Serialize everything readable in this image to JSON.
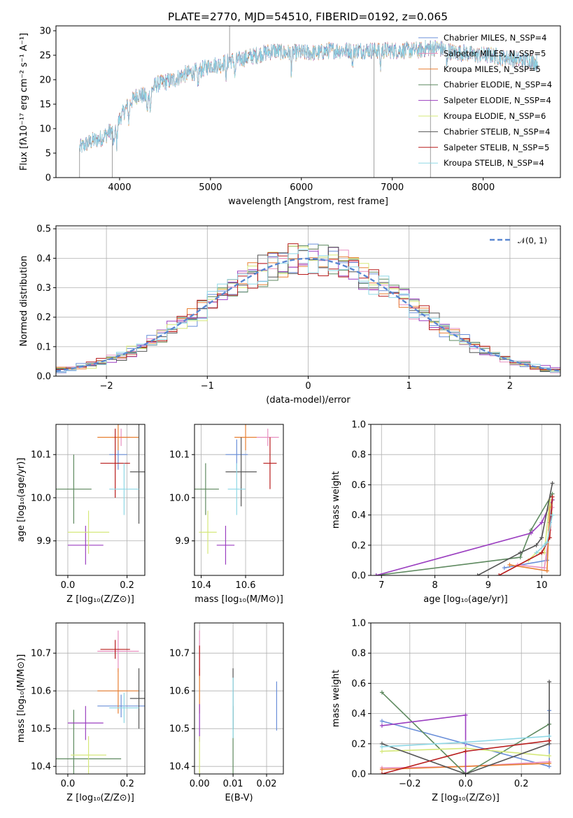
{
  "colors": [
    "#6a8fd9",
    "#e88fc0",
    "#e87f32",
    "#5f8a60",
    "#9b3fc0",
    "#d5e87a",
    "#555555",
    "#b81c1c",
    "#8fd8e6"
  ],
  "chart_data": [
    {
      "id": "spectrum",
      "type": "line",
      "title": "PLATE=2770, MJD=54510, FIBERID=0192, z=0.065",
      "xlabel": "wavelength [Angstrom, rest frame]",
      "ylabel": "Flux [fλ10⁻¹⁷ erg cm⁻² s⁻¹ A⁻¹]",
      "xlim": [
        3300,
        8850
      ],
      "ylim": [
        0,
        31
      ],
      "xticks": [
        "4000",
        "5000",
        "6000",
        "7000",
        "8000"
      ],
      "yticks": [
        "0",
        "5",
        "10",
        "15",
        "20",
        "25",
        "30"
      ],
      "continuum_x": [
        3560,
        3600,
        3700,
        3800,
        3900,
        3950,
        4000,
        4100,
        4200,
        4300,
        4400,
        4500,
        4600,
        4700,
        4800,
        4900,
        5000,
        5100,
        5200,
        5300,
        5400,
        5500,
        5600,
        5700,
        5800,
        5900,
        6000,
        6100,
        6200,
        6300,
        6400,
        6500,
        6600,
        6700,
        6800,
        6900,
        7000,
        7100,
        7200,
        7300,
        7400,
        7500,
        7600,
        7700,
        7800,
        7900,
        8000,
        8100,
        8200,
        8300,
        8400,
        8500,
        8600
      ],
      "continuum_y": [
        6,
        6.5,
        7.5,
        8,
        9.5,
        9.5,
        12,
        15,
        17,
        16.5,
        19,
        19.5,
        20,
        21,
        21.5,
        22,
        23,
        23,
        24,
        24,
        24.5,
        25,
        25.5,
        26,
        25.5,
        25.5,
        25.5,
        25.5,
        25.5,
        26,
        26,
        26,
        26,
        26,
        26,
        26,
        26,
        26,
        26,
        26,
        26.5,
        26.5,
        26,
        25.5,
        25.5,
        25,
        25,
        25,
        24.5,
        24.5,
        24,
        24,
        23.5
      ],
      "series": [
        {
          "name": "Chabrier MILES, N_SSP=4"
        },
        {
          "name": "Salpeter MILES, N_SSP=5"
        },
        {
          "name": "Kroupa MILES, N_SSP=5"
        },
        {
          "name": "Chabrier ELODIE, N_SSP=4"
        },
        {
          "name": "Salpeter ELODIE, N_SSP=4"
        },
        {
          "name": "Kroupa ELODIE, N_SSP=6"
        },
        {
          "name": "Chabrier STELIB, N_SSP=4"
        },
        {
          "name": "Salpeter STELIB, N_SSP=5"
        },
        {
          "name": "Kroupa STELIB, N_SSP=4"
        }
      ],
      "legend_placement": "upper-right",
      "grid": false
    },
    {
      "id": "residuals",
      "type": "histogram",
      "xlabel": "(data-model)/error",
      "ylabel": "Normed distribution",
      "xlim": [
        -2.5,
        2.5
      ],
      "ylim": [
        0,
        0.51
      ],
      "xticks": [
        "−2",
        "−1",
        "0",
        "1",
        "2"
      ],
      "yticks": [
        "0.0",
        "0.1",
        "0.2",
        "0.3",
        "0.4",
        "0.5"
      ],
      "bin_width": 0.1,
      "legend": "𝒩(0, 1)",
      "legend_placement": "upper-right",
      "grid": true
    },
    {
      "id": "age-vs-Z",
      "type": "errorbar",
      "xlabel": "Z [log₁₀(Z/Z⊙)]",
      "ylabel": "age  [log₁₀(age/yr)]",
      "xlim": [
        -0.04,
        0.26
      ],
      "ylim": [
        9.82,
        10.17
      ],
      "xticks": [
        "0.0",
        "0.2"
      ],
      "yticks": [
        "9.9",
        "10.0",
        "10.1"
      ],
      "points": [
        {
          "x": 0.17,
          "xe": 0.03,
          "y": 10.1,
          "ye": 0.035
        },
        {
          "x": 0.18,
          "xe": 0.03,
          "y": 10.14,
          "ye": 0.02
        },
        {
          "x": 0.17,
          "xe": 0.07,
          "y": 10.14,
          "ye": 0.03
        },
        {
          "x": 0.02,
          "xe": 0.06,
          "y": 10.02,
          "ye": 0.08
        },
        {
          "x": 0.06,
          "xe": 0.06,
          "y": 9.89,
          "ye": 0.045
        },
        {
          "x": 0.07,
          "xe": 0.07,
          "y": 9.92,
          "ye": 0.05
        },
        {
          "x": 0.24,
          "xe": 0.03,
          "y": 10.06,
          "ye": 0.12
        },
        {
          "x": 0.16,
          "xe": 0.05,
          "y": 10.08,
          "ye": 0.08
        },
        {
          "x": 0.19,
          "xe": 0.05,
          "y": 10.02,
          "ye": 0.06
        }
      ],
      "grid": true
    },
    {
      "id": "age-vs-mass",
      "type": "errorbar",
      "xlabel": "mass [log₁₀(M/M⊙)]",
      "ylabel": "",
      "xlim": [
        10.37,
        10.77
      ],
      "ylim": [
        9.82,
        10.17
      ],
      "xticks": [
        "10.4",
        "10.6"
      ],
      "yticks": [
        "9.9",
        "10.0",
        "10.1"
      ],
      "points": [
        {
          "x": 10.56,
          "xe": 0.05,
          "y": 10.1,
          "ye": 0.035
        },
        {
          "x": 10.7,
          "xe": 0.05,
          "y": 10.14,
          "ye": 0.02
        },
        {
          "x": 10.6,
          "xe": 0.05,
          "y": 10.14,
          "ye": 0.03
        },
        {
          "x": 10.42,
          "xe": 0.06,
          "y": 10.02,
          "ye": 0.06
        },
        {
          "x": 10.51,
          "xe": 0.04,
          "y": 9.89,
          "ye": 0.045
        },
        {
          "x": 10.43,
          "xe": 0.04,
          "y": 9.92,
          "ye": 0.05
        },
        {
          "x": 10.58,
          "xe": 0.07,
          "y": 10.06,
          "ye": 0.08
        },
        {
          "x": 10.71,
          "xe": 0.03,
          "y": 10.08,
          "ye": 0.06
        },
        {
          "x": 10.56,
          "xe": 0.04,
          "y": 10.02,
          "ye": 0.06
        }
      ],
      "grid": true
    },
    {
      "id": "massweight-vs-age",
      "type": "line",
      "xlabel": "age  [log₁₀(age/yr)]",
      "ylabel": "mass weight",
      "xlim": [
        6.8,
        10.35
      ],
      "ylim": [
        0,
        1
      ],
      "xticks": [
        "7",
        "8",
        "9",
        "10"
      ],
      "yticks": [
        "0.0",
        "0.2",
        "0.4",
        "0.6",
        "0.8",
        "1.0"
      ],
      "lines": [
        {
          "x": [
            9.3,
            10.1,
            10.15,
            10.2
          ],
          "y": [
            0.05,
            0.1,
            0.35,
            0.5
          ]
        },
        {
          "x": [
            9.55,
            10.05,
            10.15,
            10.2
          ],
          "y": [
            0.07,
            0.05,
            0.3,
            0.45
          ]
        },
        {
          "x": [
            9.4,
            10.1,
            10.15,
            10.2
          ],
          "y": [
            0.07,
            0.03,
            0.45,
            0.5
          ]
        },
        {
          "x": [
            6.9,
            9.6,
            9.8,
            10.2
          ],
          "y": [
            0.0,
            0.12,
            0.3,
            0.54
          ]
        },
        {
          "x": [
            6.9,
            9.8,
            10.0,
            10.2
          ],
          "y": [
            0.0,
            0.28,
            0.35,
            0.5
          ]
        },
        {
          "x": [
            9.75,
            9.9,
            10.05,
            10.15,
            10.2
          ],
          "y": [
            0.1,
            0.15,
            0.15,
            0.5,
            0.4
          ]
        },
        {
          "x": [
            8.8,
            9.6,
            9.9,
            10.0,
            10.2
          ],
          "y": [
            0.0,
            0.15,
            0.2,
            0.25,
            0.61
          ]
        },
        {
          "x": [
            9.2,
            10.0,
            10.15,
            10.2
          ],
          "y": [
            0.0,
            0.15,
            0.25,
            0.52
          ]
        },
        {
          "x": [
            9.9,
            10.05,
            10.1,
            10.2
          ],
          "y": [
            0.15,
            0.2,
            0.22,
            0.4
          ]
        }
      ],
      "grid": true
    },
    {
      "id": "mass-vs-Z",
      "type": "errorbar",
      "xlabel": "Z [log₁₀(Z/Z⊙)]",
      "ylabel": "mass [log₁₀(M/M⊙)]",
      "xlim": [
        -0.04,
        0.26
      ],
      "ylim": [
        10.38,
        10.78
      ],
      "xticks": [
        "0.0",
        "0.2"
      ],
      "yticks": [
        "10.4",
        "10.5",
        "10.6",
        "10.7"
      ],
      "points": [
        {
          "x": 0.18,
          "xe": 0.08,
          "y": 10.56,
          "ye": 0.03
        },
        {
          "x": 0.17,
          "xe": 0.07,
          "y": 10.705,
          "ye": 0.055
        },
        {
          "x": 0.17,
          "xe": 0.07,
          "y": 10.6,
          "ye": 0.06
        },
        {
          "x": 0.02,
          "xe": 0.16,
          "y": 10.42,
          "ye": 0.13
        },
        {
          "x": 0.06,
          "xe": 0.06,
          "y": 10.515,
          "ye": 0.045
        },
        {
          "x": 0.07,
          "xe": 0.06,
          "y": 10.43,
          "ye": 0.05
        },
        {
          "x": 0.24,
          "xe": 0.03,
          "y": 10.58,
          "ye": 0.08
        },
        {
          "x": 0.16,
          "xe": 0.05,
          "y": 10.71,
          "ye": 0.025
        },
        {
          "x": 0.19,
          "xe": 0.05,
          "y": 10.555,
          "ye": 0.04
        }
      ],
      "grid": true
    },
    {
      "id": "mass-vs-EBV",
      "type": "errorbar",
      "xlabel": "E(B-V)",
      "ylabel": "",
      "xlim": [
        -0.0015,
        0.025
      ],
      "ylim": [
        10.38,
        10.78
      ],
      "xticks": [
        "0.00",
        "0.01",
        "0.02"
      ],
      "yticks": [
        "10.4",
        "10.5",
        "10.6",
        "10.7"
      ],
      "points": [
        {
          "x": 0.023,
          "xe": 0.0,
          "y": 10.56,
          "ye": 0.065
        },
        {
          "x": 0.0,
          "xe": 0.0,
          "y": 10.7,
          "ye": 0.06
        },
        {
          "x": 0.0,
          "xe": 0.0,
          "y": 10.6,
          "ye": 0.06
        },
        {
          "x": 0.01,
          "xe": 0.0,
          "y": 10.42,
          "ye": 0.14
        },
        {
          "x": 0.0,
          "xe": 0.0,
          "y": 10.515,
          "ye": 0.05
        },
        {
          "x": 0.0,
          "xe": 0.0,
          "y": 10.43,
          "ye": 0.05
        },
        {
          "x": 0.01,
          "xe": 0.0,
          "y": 10.58,
          "ye": 0.08
        },
        {
          "x": 0.0,
          "xe": 0.0,
          "y": 10.68,
          "ye": 0.04
        },
        {
          "x": 0.01,
          "xe": 0.0,
          "y": 10.555,
          "ye": 0.08
        }
      ],
      "grid": true
    },
    {
      "id": "massweight-vs-Z",
      "type": "line",
      "xlabel": "Z [log₁₀(Z/Z⊙)]",
      "ylabel": "mass weight",
      "xlim": [
        -0.34,
        0.34
      ],
      "ylim": [
        0,
        1
      ],
      "xticks": [
        "−0.2",
        "0.0",
        "0.2"
      ],
      "yticks": [
        "0.0",
        "0.2",
        "0.4",
        "0.6",
        "0.8",
        "1.0"
      ],
      "lines": [
        {
          "x": [
            -0.3,
            0.0,
            0.3,
            0.3
          ],
          "y": [
            0.35,
            0.2,
            0.05,
            0.42
          ]
        },
        {
          "x": [
            -0.3,
            0.0,
            0.3
          ],
          "y": [
            0.04,
            0.05,
            0.08
          ]
        },
        {
          "x": [
            -0.3,
            0.0,
            0.3
          ],
          "y": [
            0.03,
            0.05,
            0.07
          ]
        },
        {
          "x": [
            -0.3,
            0.0,
            0.3
          ],
          "y": [
            0.54,
            0.0,
            0.33
          ]
        },
        {
          "x": [
            -0.3,
            0.0,
            0.0
          ],
          "y": [
            0.32,
            0.39,
            0.0
          ]
        },
        {
          "x": [
            -0.3,
            0.0,
            0.3
          ],
          "y": [
            0.15,
            0.17,
            0.12
          ]
        },
        {
          "x": [
            -0.3,
            0.0,
            0.3,
            0.3
          ],
          "y": [
            0.2,
            0.0,
            0.2,
            0.61
          ]
        },
        {
          "x": [
            -0.3,
            0.0,
            0.3
          ],
          "y": [
            0.0,
            0.15,
            0.22
          ]
        },
        {
          "x": [
            -0.3,
            0.0,
            0.3
          ],
          "y": [
            0.18,
            0.21,
            0.25
          ]
        }
      ],
      "grid": true
    }
  ]
}
